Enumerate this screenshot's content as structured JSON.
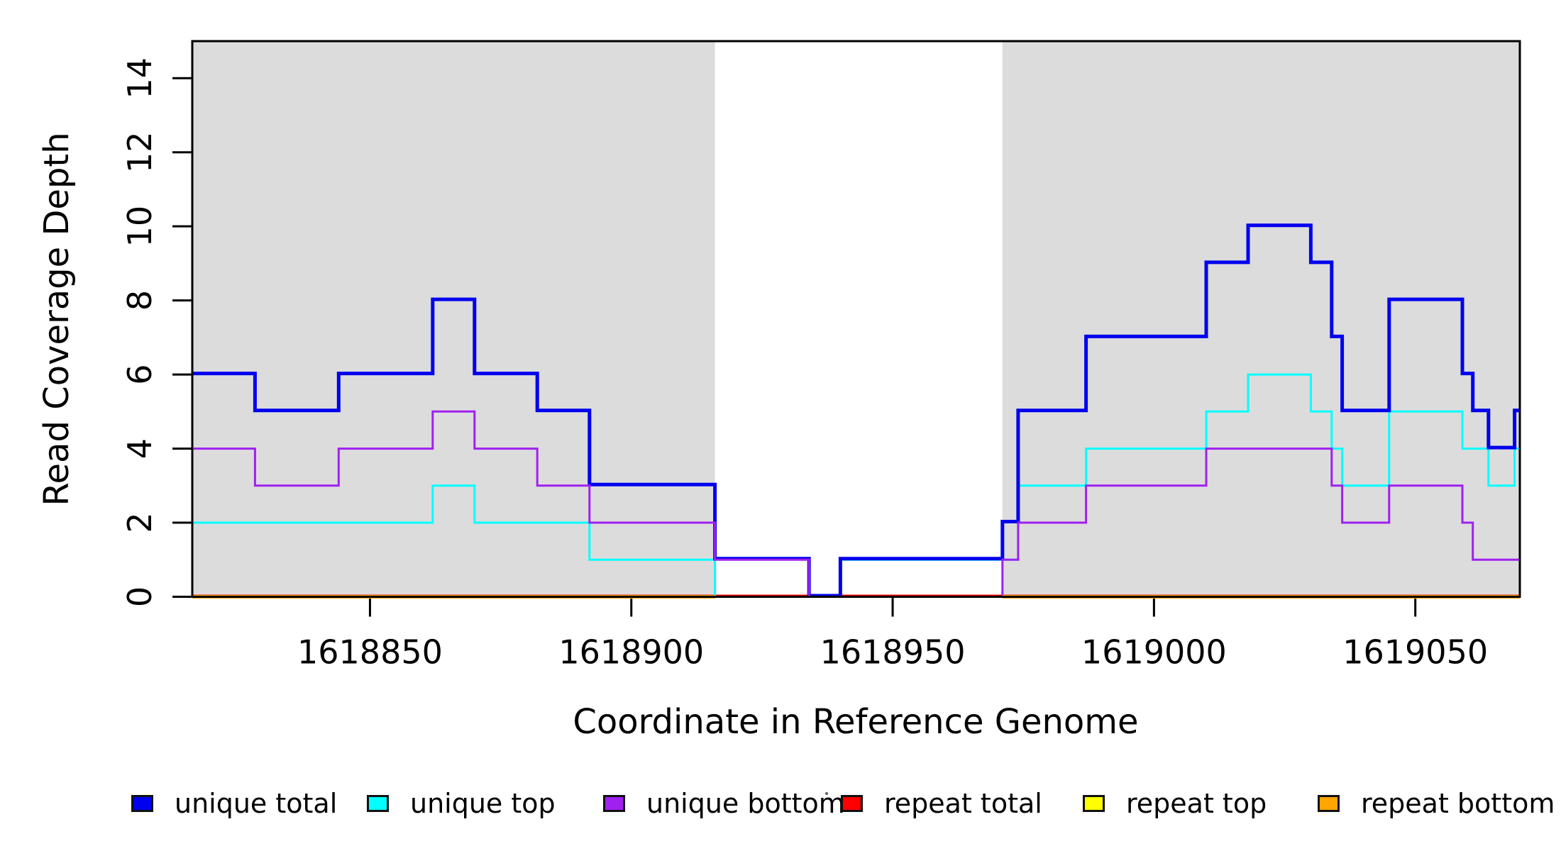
{
  "chart_data": {
    "type": "line",
    "subtype": "step-coverage",
    "title": "",
    "xlabel": "Coordinate in Reference Genome",
    "ylabel": "Read Coverage Depth",
    "xlim": [
      1618816,
      1619070
    ],
    "ylim": [
      0,
      15
    ],
    "x_ticks": [
      1618850,
      1618900,
      1618950,
      1619000,
      1619050
    ],
    "y_ticks": [
      0,
      2,
      4,
      6,
      8,
      10,
      12,
      14
    ],
    "grid": false,
    "legend_position": "bottom",
    "background_color": "#ffffff",
    "shaded_region_color": "#dcdcdc",
    "shaded_regions": [
      {
        "name": "unique-region-left",
        "x0": 1618816,
        "x1": 1618916
      },
      {
        "name": "unique-region-right",
        "x0": 1618971,
        "x1": 1619070
      }
    ],
    "series": [
      {
        "name": "unique total",
        "color": "#0000ee",
        "width": 5,
        "steps": [
          [
            1618816,
            6
          ],
          [
            1618828,
            5
          ],
          [
            1618844,
            6
          ],
          [
            1618862,
            8
          ],
          [
            1618870,
            6
          ],
          [
            1618882,
            5
          ],
          [
            1618892,
            3
          ],
          [
            1618916,
            1
          ],
          [
            1618934,
            0
          ],
          [
            1618940,
            1
          ],
          [
            1618971,
            2
          ],
          [
            1618974,
            5
          ],
          [
            1618987,
            7
          ],
          [
            1619010,
            9
          ],
          [
            1619018,
            10
          ],
          [
            1619030,
            9
          ],
          [
            1619034,
            7
          ],
          [
            1619036,
            5
          ],
          [
            1619045,
            8
          ],
          [
            1619059,
            6
          ],
          [
            1619061,
            5
          ],
          [
            1619064,
            4
          ],
          [
            1619069,
            5
          ]
        ]
      },
      {
        "name": "unique top",
        "color": "#00ffff",
        "width": 3,
        "steps": [
          [
            1618816,
            2
          ],
          [
            1618862,
            3
          ],
          [
            1618870,
            2
          ],
          [
            1618892,
            1
          ],
          [
            1618916,
            0
          ],
          [
            1618940,
            1
          ],
          [
            1618974,
            3
          ],
          [
            1618987,
            4
          ],
          [
            1619010,
            5
          ],
          [
            1619018,
            6
          ],
          [
            1619030,
            5
          ],
          [
            1619034,
            4
          ],
          [
            1619036,
            3
          ],
          [
            1619045,
            5
          ],
          [
            1619059,
            4
          ],
          [
            1619064,
            3
          ],
          [
            1619069,
            4
          ]
        ]
      },
      {
        "name": "unique bottom",
        "color": "#a020f0",
        "width": 3,
        "steps": [
          [
            1618816,
            4
          ],
          [
            1618828,
            3
          ],
          [
            1618844,
            4
          ],
          [
            1618862,
            5
          ],
          [
            1618870,
            4
          ],
          [
            1618882,
            3
          ],
          [
            1618892,
            2
          ],
          [
            1618916,
            1
          ],
          [
            1618934,
            0
          ],
          [
            1618971,
            1
          ],
          [
            1618974,
            2
          ],
          [
            1618987,
            3
          ],
          [
            1619010,
            4
          ],
          [
            1619034,
            3
          ],
          [
            1619036,
            2
          ],
          [
            1619045,
            3
          ],
          [
            1619059,
            2
          ],
          [
            1619061,
            1
          ]
        ]
      },
      {
        "name": "repeat total",
        "color": "#ff0000",
        "width": 3,
        "steps": [
          [
            1618816,
            0
          ]
        ]
      },
      {
        "name": "repeat top",
        "color": "#ffff00",
        "width": 3,
        "steps": [
          [
            1618816,
            0
          ]
        ]
      },
      {
        "name": "repeat bottom",
        "color": "#ffa500",
        "width": 5,
        "steps": [
          [
            1618816,
            0
          ]
        ],
        "visible_spans": [
          [
            1618816,
            1618916
          ],
          [
            1618971,
            1619070
          ]
        ]
      }
    ],
    "legend_entries": [
      {
        "label": "unique total",
        "color": "#0000ee"
      },
      {
        "label": "unique top",
        "color": "#00ffff"
      },
      {
        "label": "unique bottom",
        "color": "#a020f0"
      },
      {
        "label": "repeat total",
        "color": "#ff0000"
      },
      {
        "label": "repeat top",
        "color": "#ffff00"
      },
      {
        "label": "repeat bottom",
        "color": "#ffa500"
      }
    ]
  }
}
